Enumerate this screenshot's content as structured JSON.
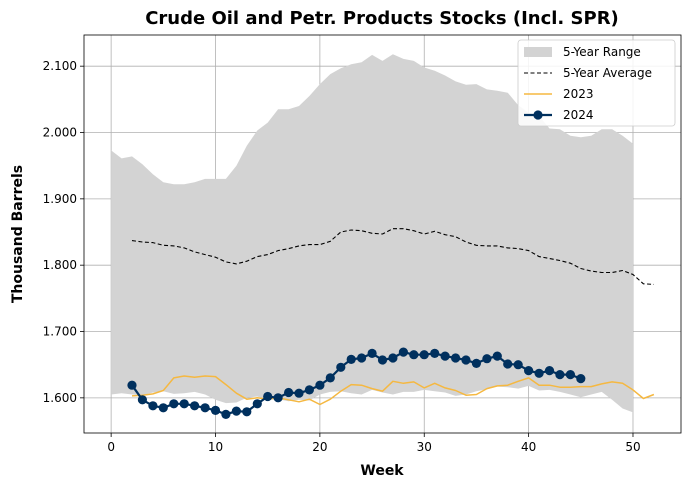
{
  "chart_data": {
    "type": "line",
    "title": "Crude Oil and Petr. Products Stocks (Incl. SPR)",
    "xlabel": "Week",
    "ylabel": "Thousand Barrels",
    "xlim": [
      -2.6,
      54.6
    ],
    "ylim": [
      1547,
      2147
    ],
    "x_ticks": [
      0,
      10,
      20,
      30,
      40,
      50
    ],
    "x_tick_labels": [
      "0",
      "10",
      "20",
      "30",
      "40",
      "50"
    ],
    "y_ticks": [
      1600,
      1700,
      1800,
      1900,
      2000,
      2100
    ],
    "y_tick_labels": [
      "1.600",
      "1.700",
      "1.800",
      "1.900",
      "2.000",
      "2.100"
    ],
    "grid": true,
    "legend_position": "top-right",
    "colors": {
      "range": "#d3d3d3",
      "average": "#000000",
      "y2023": "#f5b841",
      "y2024": "#00305e"
    },
    "legend": [
      {
        "key": "range",
        "label": "5-Year Range"
      },
      {
        "key": "average",
        "label": "5-Year Average"
      },
      {
        "key": "y2023",
        "label": "2023"
      },
      {
        "key": "y2024",
        "label": "2024"
      }
    ],
    "range": {
      "name": "5-Year Range",
      "x": [
        0,
        1,
        2,
        3,
        4,
        5,
        6,
        7,
        8,
        9,
        10,
        11,
        12,
        13,
        14,
        15,
        16,
        17,
        18,
        19,
        20,
        21,
        22,
        23,
        24,
        25,
        26,
        27,
        28,
        29,
        30,
        31,
        32,
        33,
        34,
        35,
        36,
        37,
        38,
        39,
        40,
        41,
        42,
        43,
        44,
        45,
        46,
        47,
        48,
        49,
        50
      ],
      "upper": [
        1973,
        1961,
        1964,
        1952,
        1937,
        1925,
        1922,
        1922,
        1925,
        1930,
        1930,
        1930,
        1950,
        1980,
        2003,
        2015,
        2035,
        2035,
        2040,
        2055,
        2073,
        2088,
        2097,
        2103,
        2106,
        2117,
        2108,
        2118,
        2111,
        2108,
        2098,
        2093,
        2086,
        2077,
        2072,
        2073,
        2065,
        2063,
        2060,
        2041,
        2030,
        2025,
        2006,
        2005,
        1995,
        1993,
        1995,
        2005,
        2005,
        1995,
        1983
      ],
      "lower": [
        1605,
        1607,
        1605,
        1604,
        1608,
        1610,
        1606,
        1607,
        1609,
        1605,
        1597,
        1592,
        1593,
        1600,
        1602,
        1597,
        1598,
        1595,
        1597,
        1596,
        1605,
        1609,
        1610,
        1607,
        1605,
        1612,
        1608,
        1605,
        1609,
        1609,
        1612,
        1610,
        1608,
        1603,
        1605,
        1610,
        1613,
        1617,
        1616,
        1614,
        1618,
        1611,
        1612,
        1609,
        1605,
        1601,
        1605,
        1609,
        1597,
        1584,
        1578
      ]
    },
    "series": [
      {
        "key": "average",
        "name": "5-Year Average",
        "x": [
          2,
          3,
          4,
          5,
          6,
          7,
          8,
          9,
          10,
          11,
          12,
          13,
          14,
          15,
          16,
          17,
          18,
          19,
          20,
          21,
          22,
          23,
          24,
          25,
          26,
          27,
          28,
          29,
          30,
          31,
          32,
          33,
          34,
          35,
          36,
          37,
          38,
          39,
          40,
          41,
          42,
          43,
          44,
          45,
          46,
          47,
          48,
          49,
          50,
          51,
          52
        ],
        "values": [
          1837,
          1835,
          1834,
          1830,
          1829,
          1826,
          1820,
          1816,
          1812,
          1805,
          1802,
          1806,
          1813,
          1816,
          1822,
          1825,
          1829,
          1831,
          1831,
          1836,
          1850,
          1853,
          1852,
          1848,
          1847,
          1855,
          1855,
          1852,
          1847,
          1851,
          1846,
          1843,
          1835,
          1830,
          1829,
          1829,
          1826,
          1825,
          1822,
          1813,
          1810,
          1807,
          1803,
          1795,
          1791,
          1789,
          1789,
          1792,
          1786,
          1772,
          1771
        ],
        "dashed": true,
        "markers": false
      },
      {
        "key": "y2023",
        "name": "2023",
        "x": [
          2,
          3,
          4,
          5,
          6,
          7,
          8,
          9,
          10,
          11,
          12,
          13,
          14,
          15,
          16,
          17,
          18,
          19,
          20,
          21,
          22,
          23,
          24,
          25,
          26,
          27,
          28,
          29,
          30,
          31,
          32,
          33,
          34,
          35,
          36,
          37,
          38,
          39,
          40,
          41,
          42,
          43,
          44,
          45,
          46,
          47,
          48,
          49,
          50,
          51,
          52
        ],
        "values": [
          1603,
          1604,
          1606,
          1611,
          1630,
          1633,
          1631,
          1633,
          1632,
          1620,
          1607,
          1598,
          1600,
          1598,
          1600,
          1597,
          1594,
          1598,
          1590,
          1598,
          1610,
          1620,
          1619,
          1614,
          1610,
          1625,
          1622,
          1624,
          1615,
          1622,
          1615,
          1611,
          1604,
          1605,
          1614,
          1618,
          1619,
          1625,
          1630,
          1619,
          1619,
          1616,
          1616,
          1617,
          1617,
          1621,
          1624,
          1622,
          1612,
          1599,
          1605
        ],
        "dashed": false,
        "markers": false
      },
      {
        "key": "y2024",
        "name": "2024",
        "x": [
          2,
          3,
          4,
          5,
          6,
          7,
          8,
          9,
          10,
          11,
          12,
          13,
          14,
          15,
          16,
          17,
          18,
          19,
          20,
          21,
          22,
          23,
          24,
          25,
          26,
          27,
          28,
          29,
          30,
          31,
          32,
          33,
          34,
          35,
          36,
          37,
          38,
          39,
          40,
          41,
          42,
          43,
          44,
          45
        ],
        "values": [
          1619,
          1597,
          1588,
          1585,
          1591,
          1591,
          1588,
          1585,
          1581,
          1575,
          1580,
          1579,
          1591,
          1602,
          1600,
          1608,
          1607,
          1612,
          1619,
          1630,
          1646,
          1658,
          1660,
          1667,
          1657,
          1660,
          1669,
          1665,
          1665,
          1667,
          1663,
          1660,
          1657,
          1652,
          1659,
          1663,
          1651,
          1650,
          1641,
          1637,
          1641,
          1635,
          1635,
          1629
        ],
        "dashed": false,
        "markers": true
      }
    ]
  }
}
